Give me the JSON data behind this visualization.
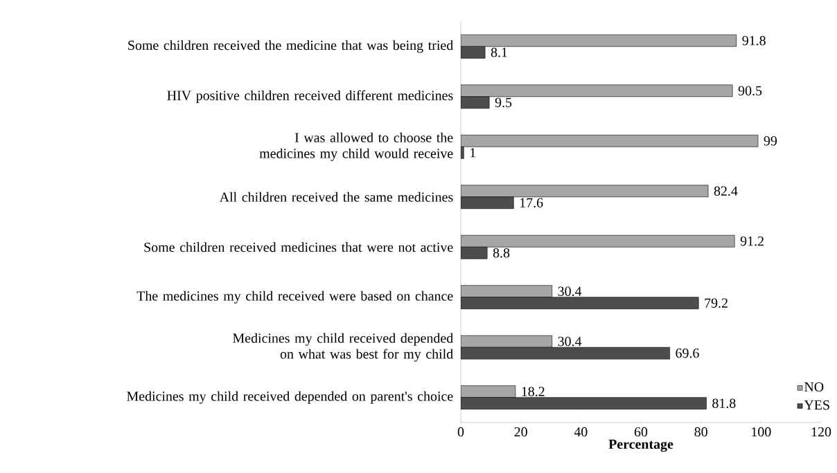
{
  "chart_data": {
    "type": "bar",
    "orientation": "horizontal",
    "xlabel": "Percentage",
    "categories": [
      "Some children received the  medicine that was being tried",
      "HIV positive children received different medicines",
      "I was allowed to choose the medicines my child would receive",
      "All children received the same medicines",
      "Some children received medicines that were not active",
      "The medicines my child received were based on chance",
      "Medicines my child received depended on what was best for my child",
      "Medicines my child received depended on parent's choice"
    ],
    "series": [
      {
        "name": "NO",
        "color": "#a6a6a6",
        "values": [
          91.8,
          90.5,
          99,
          82.4,
          91.2,
          30.4,
          30.4,
          18.2
        ]
      },
      {
        "name": "YES",
        "color": "#4d4d4d",
        "values": [
          8.1,
          9.5,
          1,
          17.6,
          8.8,
          79.2,
          69.6,
          81.8
        ]
      }
    ],
    "xlim": [
      0,
      120
    ],
    "xticks": [
      0,
      20,
      40,
      60,
      80,
      100,
      120
    ],
    "data_labels": true,
    "grid": false,
    "legend": "right"
  }
}
